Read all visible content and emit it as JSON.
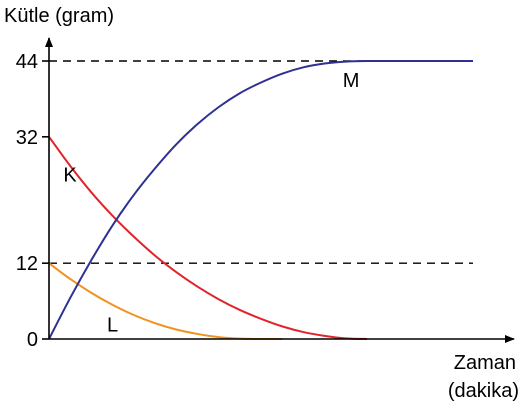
{
  "chart_data": {
    "type": "line",
    "ylabel": "Kütle (gram)",
    "xlabel_line1": "Zaman",
    "xlabel_line2": "(dakika)",
    "yticks": [
      {
        "value": 0,
        "label": "0"
      },
      {
        "value": 12,
        "label": "12"
      },
      {
        "value": 32,
        "label": "32"
      },
      {
        "value": 44,
        "label": "44"
      }
    ],
    "ylim": [
      0,
      44
    ],
    "xlim": [
      0,
      10
    ],
    "reference_lines": [
      12,
      44
    ],
    "grid": false,
    "series": [
      {
        "name": "K",
        "color": "#e0242b",
        "x": [
          0,
          0.5,
          1,
          1.5,
          2,
          2.5,
          3,
          3.5,
          4,
          4.5,
          5,
          5.5,
          6,
          6.5,
          7,
          7.5
        ],
        "y": [
          32,
          27.4,
          23.2,
          19.5,
          16.2,
          13.2,
          10.6,
          8.3,
          6.3,
          4.6,
          3.2,
          2.0,
          1.1,
          0.5,
          0.1,
          0
        ]
      },
      {
        "name": "L",
        "color": "#f0921f",
        "x": [
          0,
          0.5,
          1,
          1.5,
          2,
          2.5,
          3,
          3.5,
          4,
          4.5,
          5,
          5.5
        ],
        "y": [
          12,
          9.5,
          7.3,
          5.4,
          3.8,
          2.5,
          1.5,
          0.8,
          0.3,
          0.05,
          0,
          0
        ]
      },
      {
        "name": "M",
        "color": "#2e3192",
        "x": [
          0,
          0.5,
          1,
          1.5,
          2,
          2.5,
          3,
          3.5,
          4,
          4.5,
          5,
          5.5,
          6,
          6.5,
          7,
          7.5,
          8,
          8.5,
          9,
          9.5,
          10
        ],
        "y": [
          0,
          6.5,
          12.5,
          18.0,
          22.8,
          27.0,
          30.8,
          34.0,
          36.7,
          38.9,
          40.6,
          42.0,
          43.0,
          43.6,
          43.9,
          44,
          44,
          44,
          44,
          44,
          44
        ]
      }
    ]
  }
}
